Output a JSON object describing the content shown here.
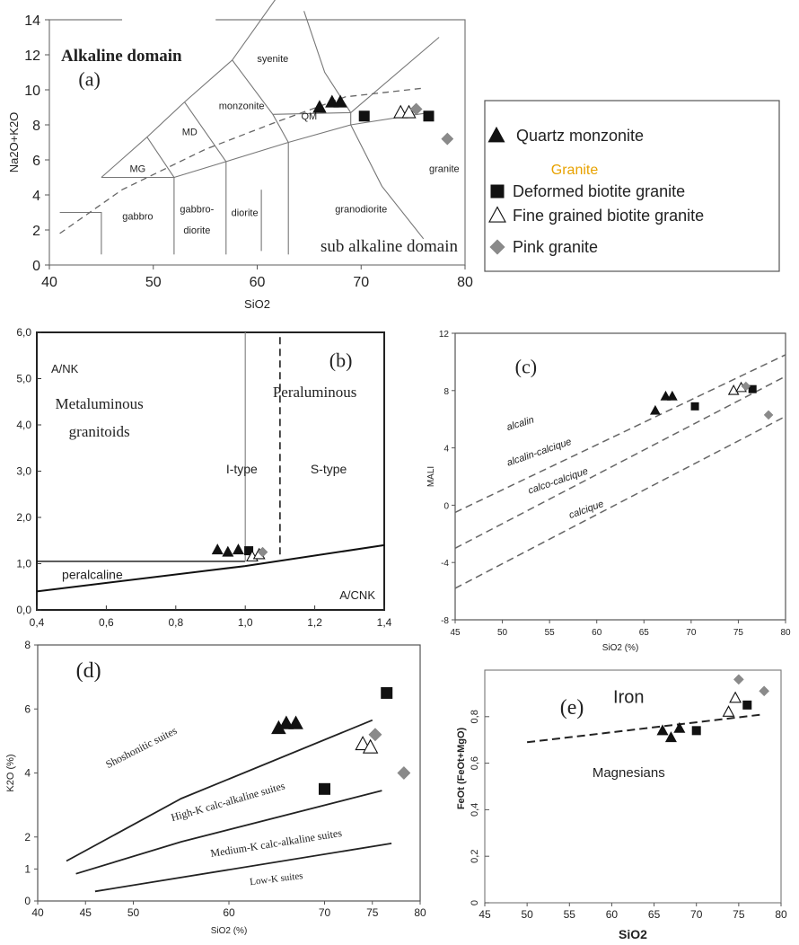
{
  "chart_data": [
    {
      "id": "a",
      "type": "scatter",
      "panel_label": "(a)",
      "xlabel": "SiO2",
      "ylabel": "Na2O+K2O",
      "xlim": [
        40,
        80
      ],
      "ylim": [
        0,
        14
      ],
      "xticks": [
        "40",
        "50",
        "60",
        "70",
        "80"
      ],
      "yticks": [
        "0",
        "2",
        "4",
        "6",
        "8",
        "10",
        "12",
        "14"
      ],
      "domain_labels": {
        "alkaline": "Alkaline domain",
        "subalkaline": "sub alkaline domain"
      },
      "field_labels": [
        {
          "text": "syenite",
          "x": 61.5,
          "y": 11.6
        },
        {
          "text": "monzonite",
          "x": 58.5,
          "y": 8.9
        },
        {
          "text": "MD",
          "x": 53.5,
          "y": 7.4
        },
        {
          "text": "MG",
          "x": 48.5,
          "y": 5.3
        },
        {
          "text": "QM",
          "x": 65,
          "y": 8.3
        },
        {
          "text": "granite",
          "x": 78,
          "y": 5.3
        },
        {
          "text": "gabbro",
          "x": 48.5,
          "y": 2.6
        },
        {
          "text": "gabbro-",
          "x": 54.2,
          "y": 3.0
        },
        {
          "text": "diorite",
          "x": 54.2,
          "y": 1.8
        },
        {
          "text": "diorite",
          "x": 58.8,
          "y": 2.8
        },
        {
          "text": "granodiorite",
          "x": 70,
          "y": 3.0
        }
      ],
      "legend": {
        "items": [
          {
            "label": "Quartz monzonite",
            "marker": "triangle-filled"
          },
          {
            "label": "Granite",
            "marker": "none"
          },
          {
            "label": "Deformed biotite granite",
            "marker": "square-filled"
          },
          {
            "label": "Fine grained biotite granite",
            "marker": "triangle-open"
          },
          {
            "label": "Pink granite",
            "marker": "diamond-gray"
          }
        ],
        "heading_color": "#e8a200"
      },
      "series": [
        {
          "marker": "triangle-filled",
          "points": [
            [
              66.0,
              9.0
            ],
            [
              67.2,
              9.3
            ],
            [
              68.0,
              9.3
            ]
          ]
        },
        {
          "marker": "square-filled",
          "points": [
            [
              70.3,
              8.5
            ],
            [
              76.5,
              8.5
            ]
          ]
        },
        {
          "marker": "triangle-open",
          "points": [
            [
              73.8,
              8.7
            ],
            [
              74.6,
              8.7
            ]
          ]
        },
        {
          "marker": "diamond-gray",
          "points": [
            [
              75.3,
              8.9
            ],
            [
              78.3,
              7.2
            ]
          ]
        }
      ]
    },
    {
      "id": "b",
      "type": "scatter",
      "panel_label": "(b)",
      "xlabel": "A/CNK",
      "ylabel": "A/NK",
      "xlim": [
        0.4,
        1.4
      ],
      "ylim": [
        0,
        6
      ],
      "xticks": [
        "0,4",
        "0,6",
        "0,8",
        "1,0",
        "1,2",
        "1,4"
      ],
      "yticks": [
        "0,0",
        "1,0",
        "2,0",
        "3,0",
        "4,0",
        "5,0",
        "6,0"
      ],
      "field_labels": [
        {
          "text": "Metaluminous",
          "x": 0.58,
          "y": 4.35
        },
        {
          "text": "granitoids",
          "x": 0.58,
          "y": 3.75
        },
        {
          "text": "Peraluminous",
          "x": 1.2,
          "y": 4.6
        },
        {
          "text": "I-type",
          "x": 0.99,
          "y": 2.95
        },
        {
          "text": "S-type",
          "x": 1.24,
          "y": 2.95
        },
        {
          "text": "peralcaline",
          "x": 0.56,
          "y": 0.67
        }
      ],
      "series": [
        {
          "marker": "triangle-filled",
          "points": [
            [
              0.92,
              1.3
            ],
            [
              0.95,
              1.25
            ],
            [
              0.98,
              1.3
            ]
          ]
        },
        {
          "marker": "square-filled",
          "points": [
            [
              1.01,
              1.28
            ]
          ]
        },
        {
          "marker": "triangle-open",
          "points": [
            [
              1.02,
              1.15
            ],
            [
              1.04,
              1.2
            ]
          ]
        },
        {
          "marker": "diamond-gray",
          "points": [
            [
              1.05,
              1.25
            ]
          ]
        }
      ]
    },
    {
      "id": "c",
      "type": "scatter",
      "panel_label": "(c)",
      "xlabel": "SiO2 (%)",
      "ylabel": "MALI",
      "xlim": [
        45,
        80
      ],
      "ylim": [
        -8,
        12
      ],
      "xticks": [
        "45",
        "50",
        "55",
        "60",
        "65",
        "70",
        "75",
        "80"
      ],
      "yticks": [
        "-8",
        "-4",
        "0",
        "4",
        "8",
        "12"
      ],
      "field_labels": [
        {
          "text": "alcalin",
          "x": 52,
          "y": 5.5
        },
        {
          "text": "alcalin-calcique",
          "x": 54,
          "y": 3.5
        },
        {
          "text": "calco-calcique",
          "x": 56,
          "y": 1.5
        },
        {
          "text": "calcique",
          "x": 59,
          "y": -0.5
        }
      ],
      "series": [
        {
          "marker": "triangle-filled",
          "points": [
            [
              66.2,
              6.6
            ],
            [
              67.3,
              7.6
            ],
            [
              68.0,
              7.6
            ]
          ]
        },
        {
          "marker": "square-filled",
          "points": [
            [
              70.4,
              6.9
            ],
            [
              76.5,
              8.1
            ]
          ]
        },
        {
          "marker": "triangle-open",
          "points": [
            [
              74.5,
              8.0
            ],
            [
              75.3,
              8.2
            ]
          ]
        },
        {
          "marker": "diamond-gray",
          "points": [
            [
              75.8,
              8.3
            ],
            [
              78.2,
              6.3
            ]
          ]
        }
      ]
    },
    {
      "id": "d",
      "type": "scatter",
      "panel_label": "(d)",
      "xlabel": "SiO2 (%)",
      "ylabel": "K2O (%)",
      "xlim": [
        40,
        80
      ],
      "ylim": [
        0,
        8
      ],
      "xticks": [
        "40",
        "45",
        "50",
        "60",
        "70",
        "75",
        "80"
      ],
      "yticks": [
        "0",
        "1",
        "2",
        "4",
        "6",
        "8"
      ],
      "field_labels": [
        {
          "text": "Shoshonitic suites",
          "x": 51,
          "y": 4.7
        },
        {
          "text": "High-K calc-alkaline suites",
          "x": 60,
          "y": 3.0
        },
        {
          "text": "Medium-K calc-alkaline suites",
          "x": 65,
          "y": 1.7
        },
        {
          "text": "Low-K suites",
          "x": 65,
          "y": 0.6
        }
      ],
      "series": [
        {
          "marker": "triangle-filled",
          "points": [
            [
              65.2,
              5.4
            ],
            [
              66.0,
              5.55
            ],
            [
              67.0,
              5.55
            ]
          ]
        },
        {
          "marker": "square-filled",
          "points": [
            [
              70.0,
              3.5
            ],
            [
              76.5,
              6.5
            ]
          ]
        },
        {
          "marker": "triangle-open",
          "points": [
            [
              74.0,
              4.9
            ],
            [
              74.8,
              4.8
            ]
          ]
        },
        {
          "marker": "diamond-gray",
          "points": [
            [
              75.3,
              5.2
            ],
            [
              78.3,
              4.0
            ]
          ]
        }
      ]
    },
    {
      "id": "e",
      "type": "scatter",
      "panel_label": "(e)",
      "xlabel": "SiO2",
      "ylabel": "FeOt (FeOt+MgO)",
      "xlim": [
        45,
        80
      ],
      "ylim": [
        0,
        1
      ],
      "xticks": [
        "45",
        "50",
        "55",
        "60",
        "65",
        "70",
        "75",
        "80"
      ],
      "yticks": [
        "0",
        "0,2",
        "0,4",
        "0,6",
        "0,8"
      ],
      "field_labels": [
        {
          "text": "Iron",
          "x": 62,
          "y": 0.86
        },
        {
          "text": "Magnesians",
          "x": 62,
          "y": 0.54
        }
      ],
      "series": [
        {
          "marker": "triangle-filled",
          "points": [
            [
              66.0,
              0.74
            ],
            [
              67.0,
              0.71
            ],
            [
              68.0,
              0.75
            ]
          ]
        },
        {
          "marker": "square-filled",
          "points": [
            [
              70.0,
              0.74
            ],
            [
              76.0,
              0.85
            ]
          ]
        },
        {
          "marker": "triangle-open",
          "points": [
            [
              73.8,
              0.82
            ],
            [
              74.6,
              0.88
            ]
          ]
        },
        {
          "marker": "diamond-gray",
          "points": [
            [
              75.0,
              0.96
            ],
            [
              78.0,
              0.91
            ]
          ]
        }
      ]
    }
  ]
}
